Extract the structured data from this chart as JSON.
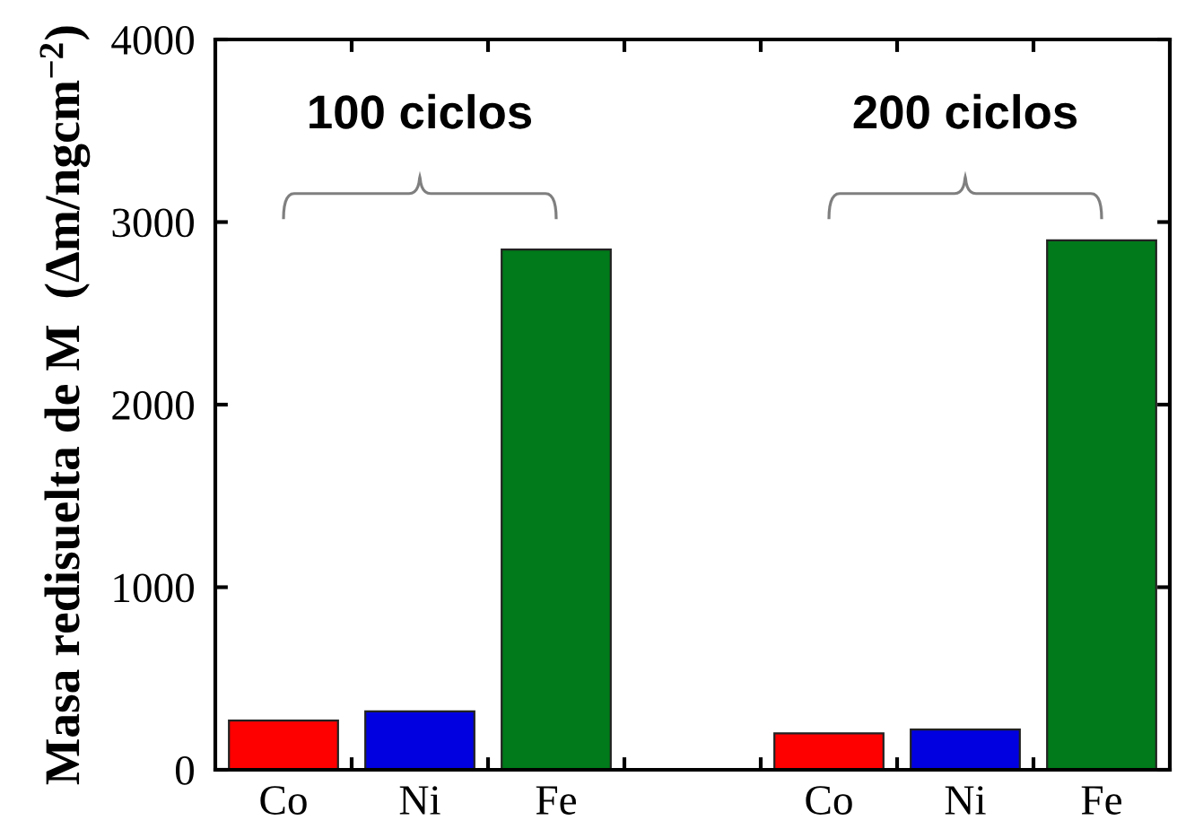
{
  "chart_data": {
    "type": "bar",
    "ylabel": "Masa redisuelta de M  (Δm/ngcm$^{−2}$)",
    "categories": [
      "Co",
      "Ni",
      "Fe",
      null,
      "Co",
      "Ni",
      "Fe"
    ],
    "values": [
      270,
      320,
      2850,
      null,
      200,
      220,
      2900
    ],
    "colors": [
      "#ff0000",
      "#0000e0",
      "#007a1a",
      null,
      "#ff0000",
      "#0000e0",
      "#007a1a"
    ],
    "ylim": [
      0,
      4000
    ],
    "yticks": [
      0,
      1000,
      2000,
      3000,
      4000
    ],
    "annotations": [
      "100 ciclos",
      "200 ciclos"
    ]
  }
}
